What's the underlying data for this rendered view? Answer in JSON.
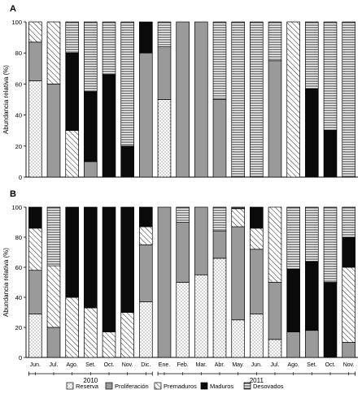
{
  "chart_data": [
    {
      "type": "bar",
      "stacked": true,
      "panel_label": "A",
      "ylabel": "Abundancia relativa (%)",
      "ylim": [
        0,
        100
      ],
      "yticks": [
        0,
        20,
        40,
        60,
        80,
        100
      ],
      "categories": [
        "Jun.",
        "Jul.",
        "Ago.",
        "Set.",
        "Oct.",
        "Nov.",
        "Dic.",
        "Ene.",
        "Feb.",
        "Mar.",
        "Abr.",
        "May.",
        "Jun.",
        "Jul.",
        "Ago.",
        "Set.",
        "Oct.",
        "Nov."
      ],
      "series": [
        {
          "name": "Reserva",
          "values": [
            62,
            0,
            0,
            0,
            0,
            0,
            0,
            50,
            0,
            0,
            0,
            0,
            0,
            0,
            0,
            0,
            0,
            0
          ]
        },
        {
          "name": "Proliferación",
          "values": [
            25,
            60,
            0,
            10,
            0,
            0,
            80,
            34,
            100,
            100,
            50,
            0,
            0,
            75,
            0,
            0,
            0,
            0
          ]
        },
        {
          "name": "Premaduros",
          "values": [
            13,
            40,
            30,
            0,
            0,
            0,
            0,
            0,
            0,
            0,
            0,
            0,
            0,
            0,
            100,
            0,
            0,
            0
          ]
        },
        {
          "name": "Maduros",
          "values": [
            0,
            0,
            50,
            45,
            66,
            20,
            20,
            0,
            0,
            0,
            0,
            0,
            0,
            0,
            0,
            57,
            30,
            0
          ]
        },
        {
          "name": "Desovados",
          "values": [
            0,
            0,
            20,
            45,
            34,
            80,
            0,
            16,
            0,
            0,
            50,
            100,
            100,
            25,
            0,
            43,
            70,
            100
          ]
        }
      ]
    },
    {
      "type": "bar",
      "stacked": true,
      "panel_label": "B",
      "ylabel": "Abundancia relativa (%)",
      "ylim": [
        0,
        100
      ],
      "yticks": [
        0,
        20,
        40,
        60,
        80,
        100
      ],
      "categories": [
        "Jun.",
        "Jul.",
        "Ago.",
        "Set.",
        "Oct.",
        "Nov.",
        "Dic.",
        "Ene.",
        "Feb.",
        "Mar.",
        "Abr.",
        "May.",
        "Jun.",
        "Jul.",
        "Ago.",
        "Set.",
        "Oct.",
        "Nov."
      ],
      "series": [
        {
          "name": "Reserva",
          "values": [
            29,
            0,
            0,
            0,
            0,
            0,
            37,
            0,
            50,
            55,
            66,
            25,
            29,
            12,
            0,
            0,
            0,
            0
          ]
        },
        {
          "name": "Proliferación",
          "values": [
            29,
            20,
            0,
            0,
            0,
            0,
            38,
            100,
            40,
            45,
            18,
            62,
            43,
            38,
            17,
            18,
            0,
            10
          ]
        },
        {
          "name": "Premaduros",
          "values": [
            28,
            41,
            40,
            33,
            17,
            30,
            12,
            0,
            0,
            0,
            0,
            12,
            14,
            50,
            0,
            0,
            0,
            50
          ]
        },
        {
          "name": "Maduros",
          "values": [
            14,
            0,
            60,
            67,
            83,
            70,
            13,
            0,
            0,
            0,
            0,
            0,
            14,
            0,
            42,
            46,
            50,
            20
          ]
        },
        {
          "name": "Desovados",
          "values": [
            0,
            39,
            0,
            0,
            0,
            0,
            0,
            0,
            10,
            0,
            16,
            1,
            0,
            0,
            41,
            36,
            50,
            20
          ]
        }
      ]
    }
  ],
  "x_groups": [
    {
      "label": "2010",
      "from": 0,
      "to": 6
    },
    {
      "label": "2011",
      "from": 7,
      "to": 17
    }
  ],
  "legend": {
    "position": "bottom",
    "items": [
      {
        "label": "Reserva",
        "pattern": "dots"
      },
      {
        "label": "Proliferación",
        "pattern": "gray"
      },
      {
        "label": "Premaduros",
        "pattern": "diagonal"
      },
      {
        "label": "Maduros",
        "pattern": "black"
      },
      {
        "label": "Desovados",
        "pattern": "horizontal"
      }
    ]
  }
}
